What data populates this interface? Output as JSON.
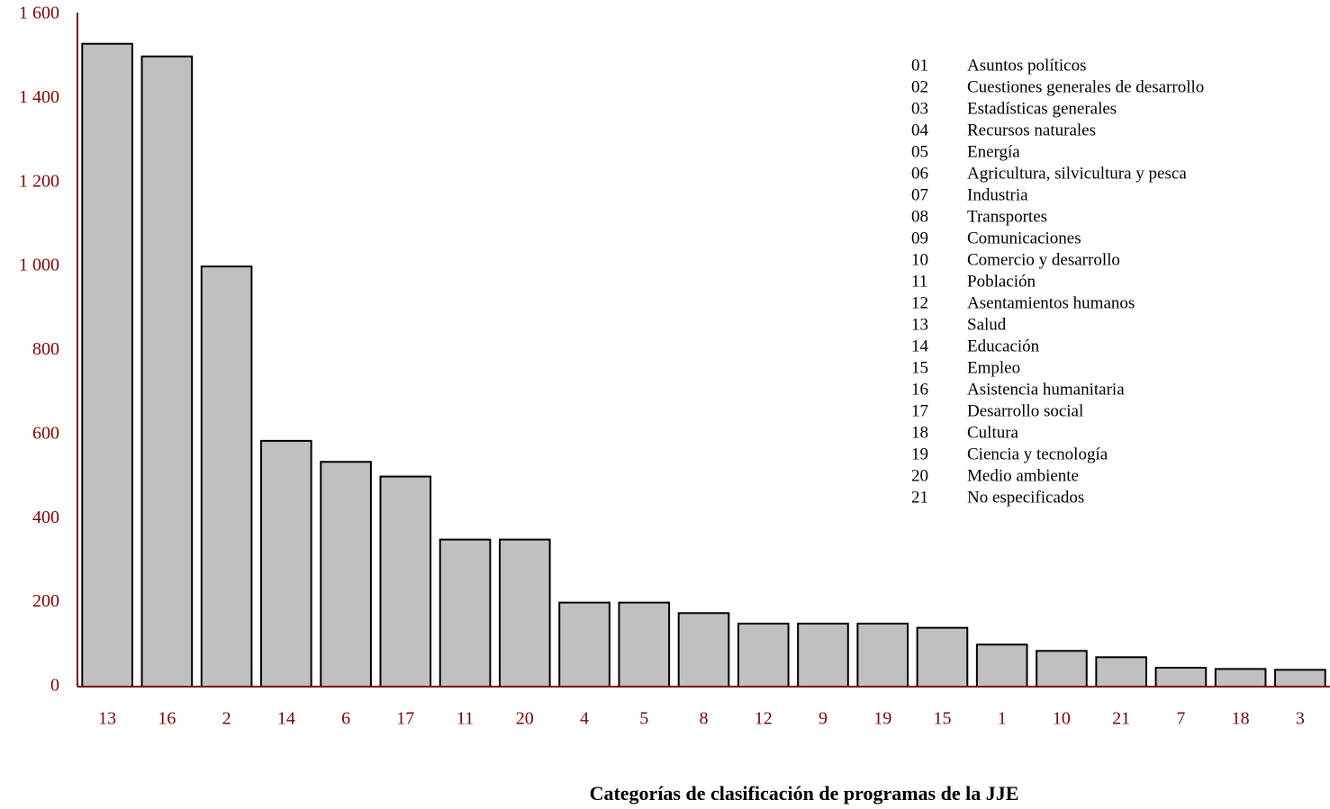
{
  "chart_data": {
    "type": "bar",
    "x_label": "Categorías de clasificación de programas de la JJE",
    "categories": [
      "13",
      "16",
      "2",
      "14",
      "6",
      "17",
      "11",
      "20",
      "4",
      "5",
      "8",
      "12",
      "9",
      "19",
      "15",
      "1",
      "10",
      "21",
      "7",
      "18",
      "3"
    ],
    "values": [
      1530,
      1500,
      1000,
      585,
      535,
      500,
      350,
      350,
      200,
      200,
      175,
      150,
      150,
      150,
      140,
      100,
      85,
      70,
      45,
      42,
      40
    ],
    "color": "#c0c0c0",
    "ylim": [
      0,
      1600
    ],
    "yticks": [
      0,
      200,
      400,
      600,
      800,
      {
        "value": 1000,
        "label": "1 000"
      },
      {
        "value": 1200,
        "label": "1 200"
      },
      {
        "value": 1400,
        "label": "1 400"
      },
      {
        "value": 1600,
        "label": "1 600"
      }
    ],
    "grid": false,
    "key": [
      {
        "code": "01",
        "label": "Asuntos políticos"
      },
      {
        "code": "02",
        "label": "Cuestiones generales de desarrollo"
      },
      {
        "code": "03",
        "label": "Estadísticas generales"
      },
      {
        "code": "04",
        "label": "Recursos naturales"
      },
      {
        "code": "05",
        "label": "Energía"
      },
      {
        "code": "06",
        "label": "Agricultura, silvicultura y pesca"
      },
      {
        "code": "07",
        "label": "Industria"
      },
      {
        "code": "08",
        "label": "Transportes"
      },
      {
        "code": "09",
        "label": "Comunicaciones"
      },
      {
        "code": "10",
        "label": "Comercio y desarrollo"
      },
      {
        "code": "11",
        "label": "Población"
      },
      {
        "code": "12",
        "label": "Asentamientos humanos"
      },
      {
        "code": "13",
        "label": "Salud"
      },
      {
        "code": "14",
        "label": "Educación"
      },
      {
        "code": "15",
        "label": "Empleo"
      },
      {
        "code": "16",
        "label": "Asistencia humanitaria"
      },
      {
        "code": "17",
        "label": "Desarrollo social"
      },
      {
        "code": "18",
        "label": "Cultura"
      },
      {
        "code": "19",
        "label": "Ciencia y tecnología"
      },
      {
        "code": "20",
        "label": "Medio ambiente"
      },
      {
        "code": "21",
        "label": "No especificados"
      }
    ]
  }
}
